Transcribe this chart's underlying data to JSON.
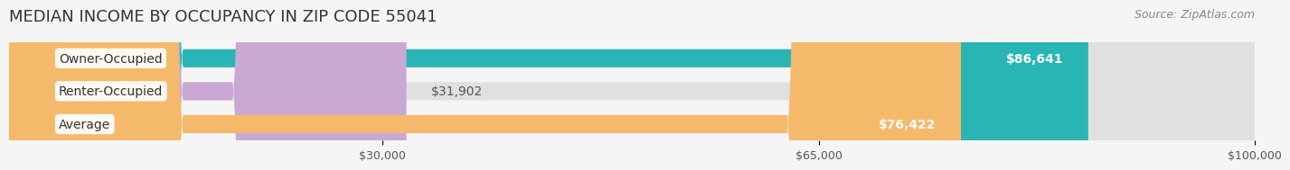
{
  "title": "MEDIAN INCOME BY OCCUPANCY IN ZIP CODE 55041",
  "source": "Source: ZipAtlas.com",
  "categories": [
    "Owner-Occupied",
    "Renter-Occupied",
    "Average"
  ],
  "values": [
    86641,
    31902,
    76422
  ],
  "labels": [
    "$86,641",
    "$31,902",
    "$76,422"
  ],
  "bar_colors": [
    "#2ab5b5",
    "#c9a8d4",
    "#f5b96b"
  ],
  "bar_bg_color": "#e8e8e8",
  "x_max": 100000,
  "x_ticks": [
    30000,
    65000,
    100000
  ],
  "x_tick_labels": [
    "$30,000",
    "$65,000",
    "$100,000"
  ],
  "title_fontsize": 13,
  "label_fontsize": 10,
  "tick_fontsize": 9,
  "source_fontsize": 9,
  "background_color": "#f5f5f5"
}
